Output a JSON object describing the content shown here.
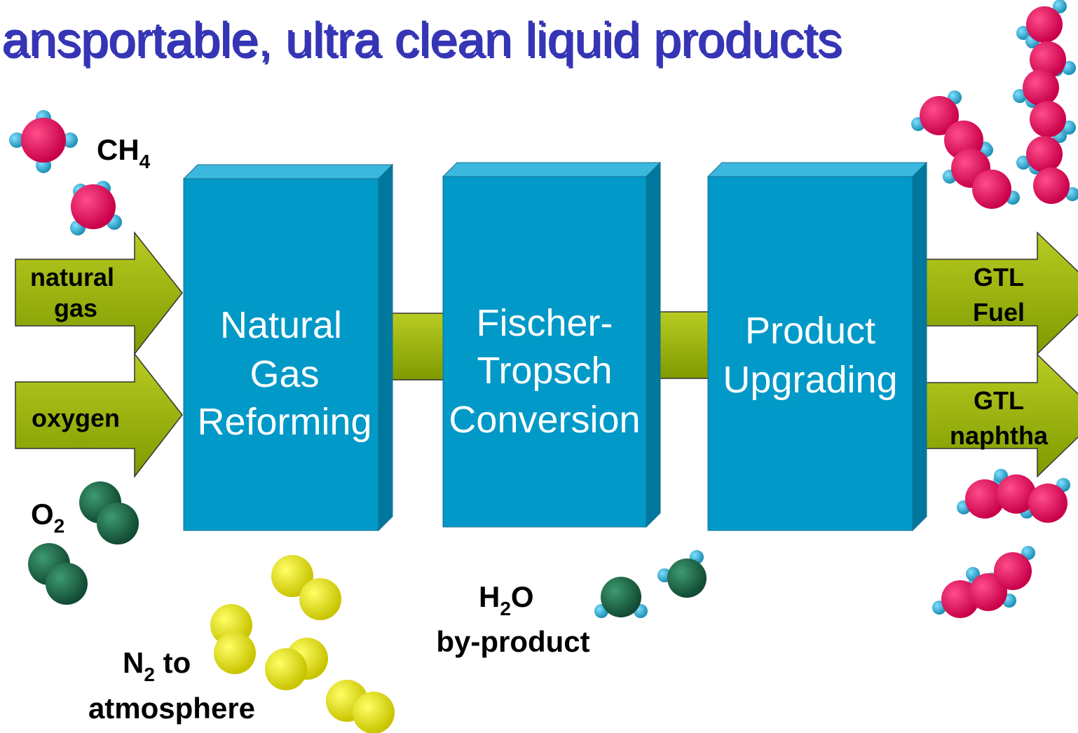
{
  "title": "ansportable, ultra clean liquid products",
  "inputs": [
    {
      "lines": [
        "natural",
        "gas"
      ]
    },
    {
      "lines": [
        "oxygen"
      ]
    }
  ],
  "boxes": [
    {
      "lines": [
        "Natural",
        "Gas",
        "Reforming"
      ]
    },
    {
      "lines": [
        "Fischer-",
        "Tropsch",
        "Conversion"
      ]
    },
    {
      "lines": [
        "Product",
        "Upgrading"
      ]
    }
  ],
  "outputs": [
    {
      "lines": [
        "GTL",
        "Fuel"
      ]
    },
    {
      "lines": [
        "GTL",
        "naphtha"
      ]
    }
  ],
  "molecules": {
    "methane": {
      "text": "CH",
      "sub": "4"
    },
    "oxygen": {
      "text": "O",
      "sub": "2"
    },
    "nitrogen": {
      "text": "N",
      "sub": "2",
      "rest": " to",
      "line2": "atmosphere"
    },
    "water": {
      "text": "H",
      "sub": "2",
      "rest": "O",
      "line2": "by-product"
    }
  }
}
